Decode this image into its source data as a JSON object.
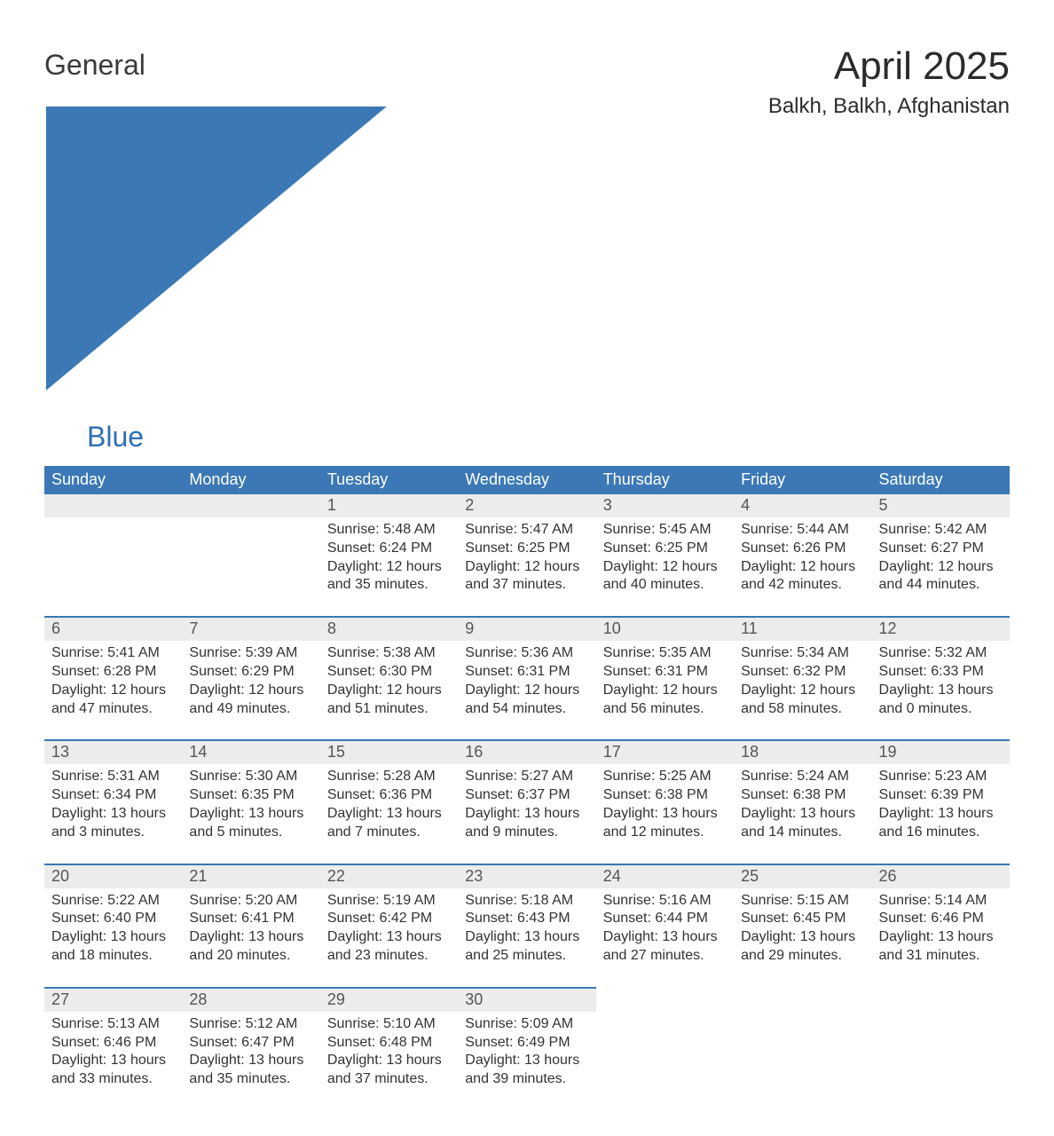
{
  "logo": {
    "text1": "General",
    "text2": "Blue"
  },
  "title": "April 2025",
  "subtitle": "Balkh, Balkh, Afghanistan",
  "colors": {
    "header_bg": "#3b78b5",
    "header_text": "#ffffff",
    "daynum_bg": "#ececec",
    "row_divider": "#3b78b5",
    "body_text": "#333333",
    "logo_gray": "#3a3a3a",
    "logo_blue": "#2f6fb0",
    "page_bg": "#ffffff"
  },
  "weekdays": [
    "Sunday",
    "Monday",
    "Tuesday",
    "Wednesday",
    "Thursday",
    "Friday",
    "Saturday"
  ],
  "weeks": [
    [
      null,
      null,
      {
        "day": "1",
        "sunrise": "Sunrise: 5:48 AM",
        "sunset": "Sunset: 6:24 PM",
        "daylight": "Daylight: 12 hours and 35 minutes."
      },
      {
        "day": "2",
        "sunrise": "Sunrise: 5:47 AM",
        "sunset": "Sunset: 6:25 PM",
        "daylight": "Daylight: 12 hours and 37 minutes."
      },
      {
        "day": "3",
        "sunrise": "Sunrise: 5:45 AM",
        "sunset": "Sunset: 6:25 PM",
        "daylight": "Daylight: 12 hours and 40 minutes."
      },
      {
        "day": "4",
        "sunrise": "Sunrise: 5:44 AM",
        "sunset": "Sunset: 6:26 PM",
        "daylight": "Daylight: 12 hours and 42 minutes."
      },
      {
        "day": "5",
        "sunrise": "Sunrise: 5:42 AM",
        "sunset": "Sunset: 6:27 PM",
        "daylight": "Daylight: 12 hours and 44 minutes."
      }
    ],
    [
      {
        "day": "6",
        "sunrise": "Sunrise: 5:41 AM",
        "sunset": "Sunset: 6:28 PM",
        "daylight": "Daylight: 12 hours and 47 minutes."
      },
      {
        "day": "7",
        "sunrise": "Sunrise: 5:39 AM",
        "sunset": "Sunset: 6:29 PM",
        "daylight": "Daylight: 12 hours and 49 minutes."
      },
      {
        "day": "8",
        "sunrise": "Sunrise: 5:38 AM",
        "sunset": "Sunset: 6:30 PM",
        "daylight": "Daylight: 12 hours and 51 minutes."
      },
      {
        "day": "9",
        "sunrise": "Sunrise: 5:36 AM",
        "sunset": "Sunset: 6:31 PM",
        "daylight": "Daylight: 12 hours and 54 minutes."
      },
      {
        "day": "10",
        "sunrise": "Sunrise: 5:35 AM",
        "sunset": "Sunset: 6:31 PM",
        "daylight": "Daylight: 12 hours and 56 minutes."
      },
      {
        "day": "11",
        "sunrise": "Sunrise: 5:34 AM",
        "sunset": "Sunset: 6:32 PM",
        "daylight": "Daylight: 12 hours and 58 minutes."
      },
      {
        "day": "12",
        "sunrise": "Sunrise: 5:32 AM",
        "sunset": "Sunset: 6:33 PM",
        "daylight": "Daylight: 13 hours and 0 minutes."
      }
    ],
    [
      {
        "day": "13",
        "sunrise": "Sunrise: 5:31 AM",
        "sunset": "Sunset: 6:34 PM",
        "daylight": "Daylight: 13 hours and 3 minutes."
      },
      {
        "day": "14",
        "sunrise": "Sunrise: 5:30 AM",
        "sunset": "Sunset: 6:35 PM",
        "daylight": "Daylight: 13 hours and 5 minutes."
      },
      {
        "day": "15",
        "sunrise": "Sunrise: 5:28 AM",
        "sunset": "Sunset: 6:36 PM",
        "daylight": "Daylight: 13 hours and 7 minutes."
      },
      {
        "day": "16",
        "sunrise": "Sunrise: 5:27 AM",
        "sunset": "Sunset: 6:37 PM",
        "daylight": "Daylight: 13 hours and 9 minutes."
      },
      {
        "day": "17",
        "sunrise": "Sunrise: 5:25 AM",
        "sunset": "Sunset: 6:38 PM",
        "daylight": "Daylight: 13 hours and 12 minutes."
      },
      {
        "day": "18",
        "sunrise": "Sunrise: 5:24 AM",
        "sunset": "Sunset: 6:38 PM",
        "daylight": "Daylight: 13 hours and 14 minutes."
      },
      {
        "day": "19",
        "sunrise": "Sunrise: 5:23 AM",
        "sunset": "Sunset: 6:39 PM",
        "daylight": "Daylight: 13 hours and 16 minutes."
      }
    ],
    [
      {
        "day": "20",
        "sunrise": "Sunrise: 5:22 AM",
        "sunset": "Sunset: 6:40 PM",
        "daylight": "Daylight: 13 hours and 18 minutes."
      },
      {
        "day": "21",
        "sunrise": "Sunrise: 5:20 AM",
        "sunset": "Sunset: 6:41 PM",
        "daylight": "Daylight: 13 hours and 20 minutes."
      },
      {
        "day": "22",
        "sunrise": "Sunrise: 5:19 AM",
        "sunset": "Sunset: 6:42 PM",
        "daylight": "Daylight: 13 hours and 23 minutes."
      },
      {
        "day": "23",
        "sunrise": "Sunrise: 5:18 AM",
        "sunset": "Sunset: 6:43 PM",
        "daylight": "Daylight: 13 hours and 25 minutes."
      },
      {
        "day": "24",
        "sunrise": "Sunrise: 5:16 AM",
        "sunset": "Sunset: 6:44 PM",
        "daylight": "Daylight: 13 hours and 27 minutes."
      },
      {
        "day": "25",
        "sunrise": "Sunrise: 5:15 AM",
        "sunset": "Sunset: 6:45 PM",
        "daylight": "Daylight: 13 hours and 29 minutes."
      },
      {
        "day": "26",
        "sunrise": "Sunrise: 5:14 AM",
        "sunset": "Sunset: 6:46 PM",
        "daylight": "Daylight: 13 hours and 31 minutes."
      }
    ],
    [
      {
        "day": "27",
        "sunrise": "Sunrise: 5:13 AM",
        "sunset": "Sunset: 6:46 PM",
        "daylight": "Daylight: 13 hours and 33 minutes."
      },
      {
        "day": "28",
        "sunrise": "Sunrise: 5:12 AM",
        "sunset": "Sunset: 6:47 PM",
        "daylight": "Daylight: 13 hours and 35 minutes."
      },
      {
        "day": "29",
        "sunrise": "Sunrise: 5:10 AM",
        "sunset": "Sunset: 6:48 PM",
        "daylight": "Daylight: 13 hours and 37 minutes."
      },
      {
        "day": "30",
        "sunrise": "Sunrise: 5:09 AM",
        "sunset": "Sunset: 6:49 PM",
        "daylight": "Daylight: 13 hours and 39 minutes."
      },
      null,
      null,
      null
    ]
  ]
}
